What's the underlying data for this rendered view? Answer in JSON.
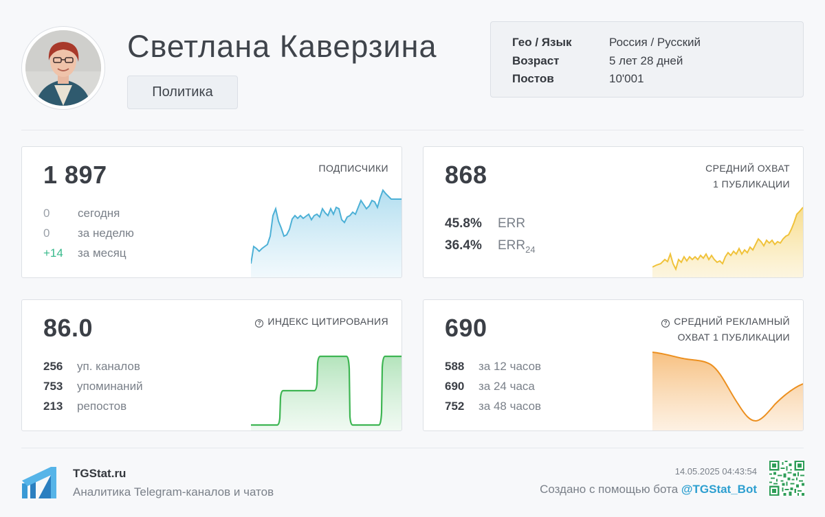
{
  "profile": {
    "name": "Светлана Каверзина",
    "category": "Политика"
  },
  "info": [
    {
      "key": "Гео / Язык",
      "value": "Россия / Русский"
    },
    {
      "key": "Возраст",
      "value": "5 лет 28 дней"
    },
    {
      "key": "Постов",
      "value": "10'001"
    }
  ],
  "subscribers": {
    "value": "1 897",
    "label": "ПОДПИСЧИКИ",
    "rows": [
      {
        "num": "0",
        "text": "сегодня"
      },
      {
        "num": "0",
        "text": "за неделю"
      },
      {
        "num": "+14",
        "text": "за месяц"
      }
    ],
    "color": "#4cb0d6"
  },
  "reach": {
    "value": "868",
    "label_line1": "СРЕДНИЙ ОХВАТ",
    "label_line2": "1 ПУБЛИКАЦИИ",
    "err": {
      "num": "45.8%",
      "text": "ERR"
    },
    "err24": {
      "num": "36.4%",
      "text": "ERR",
      "sub": "24"
    },
    "color": "#f0c23a"
  },
  "citation": {
    "value": "86.0",
    "label": "ИНДЕКС ЦИТИРОВАНИЯ",
    "rows": [
      {
        "num": "256",
        "text": "уп. каналов"
      },
      {
        "num": "753",
        "text": "упоминаний"
      },
      {
        "num": "213",
        "text": "репостов"
      }
    ],
    "color": "#3db552"
  },
  "ad_reach": {
    "value": "690",
    "label_line1": "СРЕДНИЙ РЕКЛАМНЫЙ",
    "label_line2": "ОХВАТ 1 ПУБЛИКАЦИИ",
    "rows": [
      {
        "num": "588",
        "text": "за 12 часов"
      },
      {
        "num": "690",
        "text": "за 24 часа"
      },
      {
        "num": "752",
        "text": "за 48 часов"
      }
    ],
    "color": "#ec8f1e"
  },
  "footer": {
    "brand": "TGStat.ru",
    "tagline": "Аналитика Telegram-каналов и чатов",
    "timestamp": "14.05.2025 04:43:54",
    "created_prefix": "Создано с помощью бота",
    "bot": "@TGStat_Bot"
  }
}
